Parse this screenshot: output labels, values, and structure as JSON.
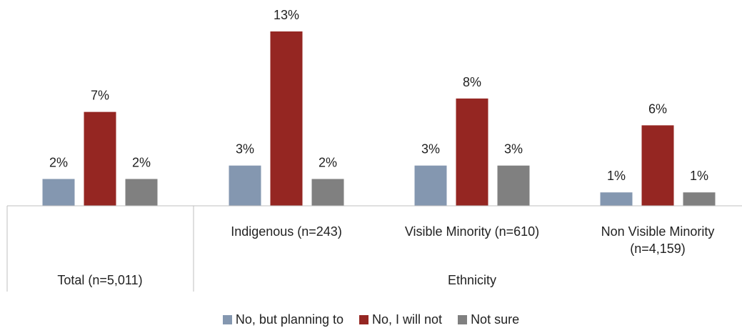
{
  "chart_data": {
    "type": "bar",
    "groups": [
      {
        "label": "Total (n=5,011)",
        "label_lines": [
          "Total (n=5,011)"
        ],
        "group": "Total"
      },
      {
        "label": "Indigenous (n=243)",
        "label_lines": [
          "Indigenous (n=243)"
        ],
        "group": "Ethnicity"
      },
      {
        "label": "Visible Minority (n=610)",
        "label_lines": [
          "Visible Minority (n=610)"
        ],
        "group": "Ethnicity"
      },
      {
        "label": "Non Visible Minority (n=4,159)",
        "label_lines": [
          "Non Visible Minority",
          "(n=4,159)"
        ],
        "group": "Ethnicity"
      }
    ],
    "group_labels": [
      "Ethnicity"
    ],
    "series": [
      {
        "name": "No, but planning to",
        "color": "#8497B0",
        "values": [
          2,
          3,
          3,
          1
        ],
        "labels": [
          "2%",
          "3%",
          "3%",
          "1%"
        ]
      },
      {
        "name": "No, I will not",
        "color": "#952622",
        "values": [
          7,
          13,
          8,
          6
        ],
        "labels": [
          "7%",
          "13%",
          "8%",
          "6%"
        ]
      },
      {
        "name": "Not sure",
        "color": "#808080",
        "values": [
          2,
          2,
          3,
          1
        ],
        "labels": [
          "2%",
          "2%",
          "3%",
          "1%"
        ]
      }
    ],
    "ylim": [
      0,
      13.5
    ],
    "grid": false,
    "legend_position": "bottom"
  }
}
